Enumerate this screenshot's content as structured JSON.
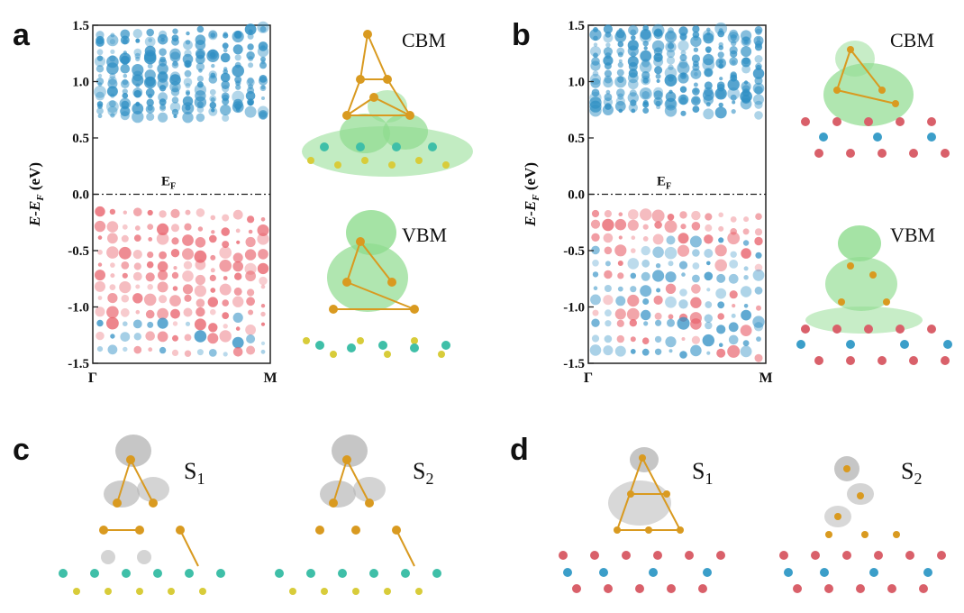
{
  "panels": {
    "a": {
      "letter": "a"
    },
    "b": {
      "letter": "b"
    },
    "c": {
      "letter": "c"
    },
    "d": {
      "letter": "d"
    }
  },
  "band_plots": [
    {
      "id": "a",
      "ylabel": "E-E_F (eV)",
      "fermi_label": "E_F",
      "xticks": [
        "Γ",
        "M"
      ],
      "yticks": [
        "1.5",
        "1.0",
        "0.5",
        "0.0",
        "-0.5",
        "-1.0",
        "-1.5"
      ],
      "ylim": [
        -1.5,
        1.5
      ],
      "cbm_label": "CBM",
      "vbm_label": "VBM"
    },
    {
      "id": "b",
      "ylabel": "E-E_F (eV)",
      "fermi_label": "E_F",
      "xticks": [
        "Γ",
        "M"
      ],
      "yticks": [
        "1.5",
        "1.0",
        "0.5",
        "0.0",
        "-0.5",
        "-1.0",
        "-1.5"
      ],
      "ylim": [
        -1.5,
        1.5
      ],
      "cbm_label": "CBM",
      "vbm_label": "VBM"
    }
  ],
  "state_panels": {
    "c": {
      "s1": {
        "base": "S",
        "sub": "1"
      },
      "s2": {
        "base": "S",
        "sub": "2"
      }
    },
    "d": {
      "s1": {
        "base": "S",
        "sub": "1"
      },
      "s2": {
        "base": "S",
        "sub": "2"
      }
    }
  },
  "colors": {
    "conduction": "#2f8fc4",
    "valence": "#e8606a",
    "density": "#7ed67e",
    "sulfur": "#d8cc3a",
    "cluster": "#d99a20",
    "metal": "#3b9ec9",
    "oxygen": "#d9606a",
    "gray_density": "#b8b8b8"
  }
}
